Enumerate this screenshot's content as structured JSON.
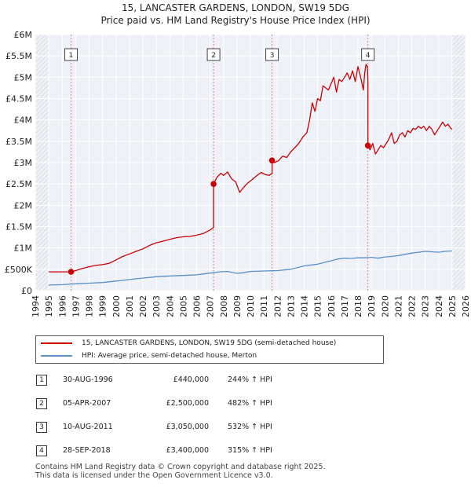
{
  "title_line1": "15, LANCASTER GARDENS, LONDON, SW19 5DG",
  "title_line2": "Price paid vs. HM Land Registry's House Price Index (HPI)",
  "chart_data": {
    "type": "line",
    "xlim": [
      1994,
      2026
    ],
    "ylim": [
      0,
      6000000
    ],
    "x_ticks": [
      1994,
      1995,
      1996,
      1997,
      1998,
      1999,
      2000,
      2001,
      2002,
      2003,
      2004,
      2005,
      2006,
      2007,
      2008,
      2009,
      2010,
      2011,
      2012,
      2013,
      2014,
      2015,
      2016,
      2017,
      2018,
      2019,
      2020,
      2021,
      2022,
      2023,
      2024,
      2025,
      2026
    ],
    "y_ticks": [
      {
        "value": 0,
        "label": "£0"
      },
      {
        "value": 500000,
        "label": "£500K"
      },
      {
        "value": 1000000,
        "label": "£1M"
      },
      {
        "value": 1500000,
        "label": "£1.5M"
      },
      {
        "value": 2000000,
        "label": "£2M"
      },
      {
        "value": 2500000,
        "label": "£2.5M"
      },
      {
        "value": 3000000,
        "label": "£3M"
      },
      {
        "value": 3500000,
        "label": "£3.5M"
      },
      {
        "value": 4000000,
        "label": "£4M"
      },
      {
        "value": 4500000,
        "label": "£4.5M"
      },
      {
        "value": 5000000,
        "label": "£5M"
      },
      {
        "value": 5500000,
        "label": "£5.5M"
      },
      {
        "value": 6000000,
        "label": "£6M"
      }
    ],
    "grid": true,
    "hatch_regions": [
      [
        1994,
        1995
      ],
      [
        2025,
        2026
      ]
    ],
    "series": [
      {
        "name": "15, LANCASTER GARDENS, LONDON, SW19 5DG (semi-detached house)",
        "color": "#cc0000",
        "x": [
          1995.0,
          1995.5,
          1996.0,
          1996.66,
          1997.0,
          1997.5,
          1998.0,
          1998.5,
          1999.0,
          1999.5,
          2000.0,
          2000.5,
          2001.0,
          2001.5,
          2002.0,
          2002.5,
          2003.0,
          2003.5,
          2004.0,
          2004.5,
          2005.0,
          2005.5,
          2006.0,
          2006.5,
          2007.0,
          2007.26,
          2007.26,
          2007.5,
          2007.8,
          2008.0,
          2008.3,
          2008.6,
          2008.9,
          2009.2,
          2009.5,
          2009.8,
          2010.2,
          2010.5,
          2010.8,
          2011.1,
          2011.4,
          2011.61,
          2011.61,
          2011.8,
          2012.1,
          2012.4,
          2012.7,
          2013.0,
          2013.3,
          2013.6,
          2013.9,
          2014.2,
          2014.4,
          2014.6,
          2014.8,
          2015.0,
          2015.2,
          2015.4,
          2015.6,
          2015.8,
          2016.0,
          2016.2,
          2016.4,
          2016.6,
          2016.8,
          2017.0,
          2017.2,
          2017.4,
          2017.6,
          2017.8,
          2018.0,
          2018.2,
          2018.4,
          2018.5,
          2018.6,
          2018.7,
          2018.74,
          2018.74,
          2018.9,
          2019.1,
          2019.3,
          2019.5,
          2019.7,
          2019.9,
          2020.1,
          2020.3,
          2020.5,
          2020.7,
          2020.9,
          2021.1,
          2021.3,
          2021.5,
          2021.7,
          2021.9,
          2022.1,
          2022.3,
          2022.5,
          2022.7,
          2022.9,
          2023.1,
          2023.3,
          2023.5,
          2023.7,
          2023.9,
          2024.1,
          2024.3,
          2024.5,
          2024.7,
          2024.9,
          2025.0
        ],
        "y": [
          440000,
          440000,
          440000,
          440000,
          470000,
          520000,
          560000,
          590000,
          610000,
          640000,
          720000,
          800000,
          860000,
          920000,
          980000,
          1060000,
          1120000,
          1160000,
          1200000,
          1240000,
          1260000,
          1270000,
          1300000,
          1340000,
          1420000,
          1480000,
          2500000,
          2650000,
          2750000,
          2700000,
          2780000,
          2620000,
          2550000,
          2300000,
          2420000,
          2520000,
          2620000,
          2700000,
          2770000,
          2720000,
          2700000,
          2750000,
          3050000,
          3000000,
          3050000,
          3150000,
          3120000,
          3250000,
          3350000,
          3450000,
          3600000,
          3700000,
          4000000,
          4400000,
          4200000,
          4500000,
          4450000,
          4800000,
          4750000,
          4700000,
          4850000,
          5000000,
          4650000,
          4950000,
          4900000,
          5000000,
          5100000,
          4950000,
          5150000,
          4900000,
          5250000,
          5000000,
          4700000,
          5100000,
          5300000,
          5250000,
          4900000,
          3400000,
          3300000,
          3450000,
          3200000,
          3300000,
          3400000,
          3350000,
          3450000,
          3550000,
          3700000,
          3450000,
          3500000,
          3650000,
          3700000,
          3600000,
          3750000,
          3700000,
          3800000,
          3780000,
          3850000,
          3800000,
          3850000,
          3750000,
          3850000,
          3780000,
          3650000,
          3750000,
          3850000,
          3950000,
          3850000,
          3900000,
          3800000,
          3780000
        ]
      },
      {
        "name": "HPI: Average price, semi-detached house, Merton",
        "color": "#5b8fc9",
        "x": [
          1995.0,
          1996.0,
          1997.0,
          1998.0,
          1999.0,
          2000.0,
          2001.0,
          2002.0,
          2003.0,
          2004.0,
          2005.0,
          2006.0,
          2007.0,
          2007.7,
          2008.3,
          2009.0,
          2009.5,
          2010.0,
          2011.0,
          2012.0,
          2013.0,
          2014.0,
          2015.0,
          2015.5,
          2016.0,
          2016.5,
          2017.0,
          2017.5,
          2018.0,
          2018.5,
          2019.0,
          2019.5,
          2020.0,
          2020.5,
          2021.0,
          2021.5,
          2022.0,
          2022.5,
          2023.0,
          2023.5,
          2024.0,
          2024.5,
          2025.0
        ],
        "y": [
          130000,
          140000,
          160000,
          175000,
          190000,
          225000,
          260000,
          295000,
          325000,
          345000,
          355000,
          370000,
          410000,
          440000,
          450000,
          405000,
          420000,
          450000,
          460000,
          470000,
          500000,
          580000,
          620000,
          660000,
          700000,
          740000,
          760000,
          755000,
          770000,
          770000,
          780000,
          760000,
          790000,
          800000,
          820000,
          850000,
          880000,
          900000,
          920000,
          910000,
          900000,
          920000,
          930000
        ]
      }
    ],
    "transactions": [
      {
        "id": "1",
        "x": 1996.66,
        "y": 440000
      },
      {
        "id": "2",
        "x": 2007.26,
        "y": 2500000
      },
      {
        "id": "3",
        "x": 2011.61,
        "y": 3050000
      },
      {
        "id": "4",
        "x": 2018.74,
        "y": 3400000
      }
    ]
  },
  "legend": {
    "red_label": "15, LANCASTER GARDENS, LONDON, SW19 5DG (semi-detached house)",
    "blue_label": "HPI: Average price, semi-detached house, Merton",
    "red_color": "#cc0000",
    "blue_color": "#5b8fc9"
  },
  "transactions_table": [
    {
      "num": "1",
      "date": "30-AUG-1996",
      "price": "£440,000",
      "hpi": "244% ↑ HPI"
    },
    {
      "num": "2",
      "date": "05-APR-2007",
      "price": "£2,500,000",
      "hpi": "482% ↑ HPI"
    },
    {
      "num": "3",
      "date": "10-AUG-2011",
      "price": "£3,050,000",
      "hpi": "532% ↑ HPI"
    },
    {
      "num": "4",
      "date": "28-SEP-2018",
      "price": "£3,400,000",
      "hpi": "315% ↑ HPI"
    }
  ],
  "footer_line1": "Contains HM Land Registry data © Crown copyright and database right 2025.",
  "footer_line2": "This data is licensed under the Open Government Licence v3.0."
}
